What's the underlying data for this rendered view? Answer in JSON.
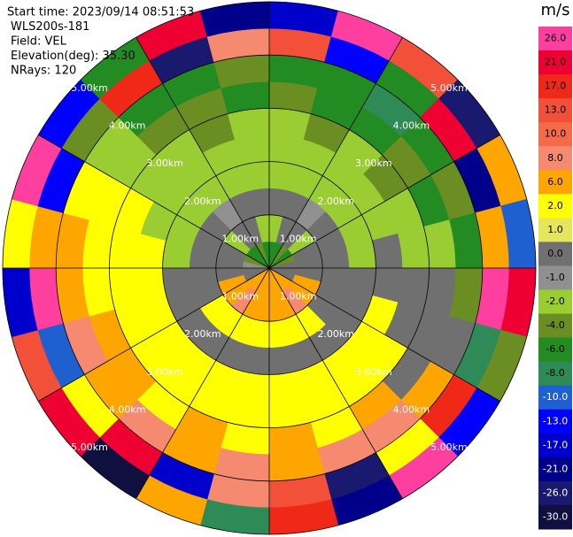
{
  "chart_data": {
    "type": "ppi",
    "annotations": [
      "Start time: 2023/09/14 08:51:53",
      "WLS200s-181",
      "Field: VEL",
      "Elevation(deg): 35.30",
      "NRays: 120"
    ],
    "range_rings": [
      {
        "value": 1,
        "label": "1.00km"
      },
      {
        "value": 2,
        "label": "2.00km"
      },
      {
        "value": 3,
        "label": "3.00km"
      },
      {
        "value": 4,
        "label": "4.00km"
      },
      {
        "value": 5,
        "label": "5.00km"
      }
    ],
    "field": [
      [
        -6,
        -6,
        -4,
        -6,
        -4,
        0,
        0,
        0,
        6,
        6,
        6,
        6,
        6,
        6,
        6,
        6,
        0,
        0,
        -1,
        -4,
        -6,
        -6,
        -4,
        -6
      ],
      [
        -2,
        0,
        0,
        -2,
        0,
        0,
        0,
        6,
        6,
        8,
        6,
        6,
        6,
        6,
        8,
        6,
        6,
        0,
        0,
        0,
        -2,
        0,
        0,
        -2
      ],
      [
        0,
        0,
        -1,
        0,
        0,
        0,
        0,
        0,
        0,
        2,
        2,
        2,
        2,
        2,
        2,
        2,
        0,
        0,
        0,
        0,
        0,
        -1,
        0,
        0
      ],
      [
        -2,
        -2,
        -2,
        -2,
        -2,
        -2,
        0,
        0,
        0,
        0,
        0,
        0,
        0,
        0,
        0,
        0,
        0,
        0,
        -2,
        -2,
        -2,
        -2,
        -2,
        -2
      ],
      [
        -2,
        -2,
        -2,
        -2,
        -2,
        0,
        0,
        2,
        2,
        2,
        2,
        2,
        2,
        2,
        2,
        2,
        2,
        2,
        2,
        -2,
        -2,
        -2,
        -2,
        -2
      ],
      [
        -2,
        -4,
        -2,
        -4,
        -2,
        -2,
        0,
        0,
        2,
        2,
        2,
        2,
        2,
        2,
        2,
        2,
        2,
        2,
        2,
        2,
        -2,
        -2,
        -4,
        -2
      ],
      [
        -4,
        -6,
        -6,
        -4,
        -6,
        -2,
        0,
        0,
        0,
        6,
        2,
        6,
        2,
        6,
        2,
        6,
        6,
        2,
        2,
        2,
        -2,
        -4,
        -4,
        -6
      ],
      [
        -6,
        -6,
        -8,
        -6,
        -4,
        -6,
        -4,
        0,
        6,
        8,
        8,
        6,
        8,
        6,
        8,
        6,
        8,
        6,
        6,
        2,
        -2,
        -6,
        -6,
        -4
      ],
      [
        13,
        -13,
        -6,
        21,
        -21,
        6,
        26,
        -8,
        17,
        2,
        -26,
        13,
        8,
        -17,
        21,
        2,
        -10,
        26,
        6,
        -13,
        -4,
        17,
        -26,
        8
      ],
      [
        -17,
        26,
        13,
        -26,
        6,
        -10,
        21,
        -4,
        -13,
        26,
        -21,
        17,
        -8,
        6,
        -30,
        21,
        13,
        -17,
        2,
        26,
        -13,
        -6,
        21,
        -21
      ]
    ],
    "colorbar": {
      "title": "m/s",
      "ticks": [
        {
          "value": 26,
          "label": "26.0"
        },
        {
          "value": 21,
          "label": "21.0"
        },
        {
          "value": 17,
          "label": "17.0"
        },
        {
          "value": 13,
          "label": "13.0"
        },
        {
          "value": 10,
          "label": "10.0"
        },
        {
          "value": 8,
          "label": "8.0"
        },
        {
          "value": 6,
          "label": "6.0"
        },
        {
          "value": 2,
          "label": "2.0"
        },
        {
          "value": 1,
          "label": "1.0"
        },
        {
          "value": 0,
          "label": "0.0"
        },
        {
          "value": -1,
          "label": "-1.0"
        },
        {
          "value": -2,
          "label": "-2.0"
        },
        {
          "value": -4,
          "label": "-4.0"
        },
        {
          "value": -6,
          "label": "-6.0"
        },
        {
          "value": -8,
          "label": "-8.0"
        },
        {
          "value": -10,
          "label": "-10.0"
        },
        {
          "value": -13,
          "label": "-13.0"
        },
        {
          "value": -17,
          "label": "-17.0"
        },
        {
          "value": -21,
          "label": "-21.0"
        },
        {
          "value": -26,
          "label": "-26.0"
        },
        {
          "value": -30,
          "label": "-30.0"
        }
      ],
      "colors": [
        "#ff3fa0",
        "#ee0033",
        "#f02818",
        "#f25038",
        "#f56a48",
        "#f58a70",
        "#ffa500",
        "#ffff00",
        "#e6e65a",
        "#707070",
        "#909090",
        "#9acd32",
        "#6b8e23",
        "#228b22",
        "#2e8b57",
        "#1e60d0",
        "#0000ff",
        "#0000cd",
        "#00008b",
        "#191970",
        "#101040"
      ]
    }
  }
}
